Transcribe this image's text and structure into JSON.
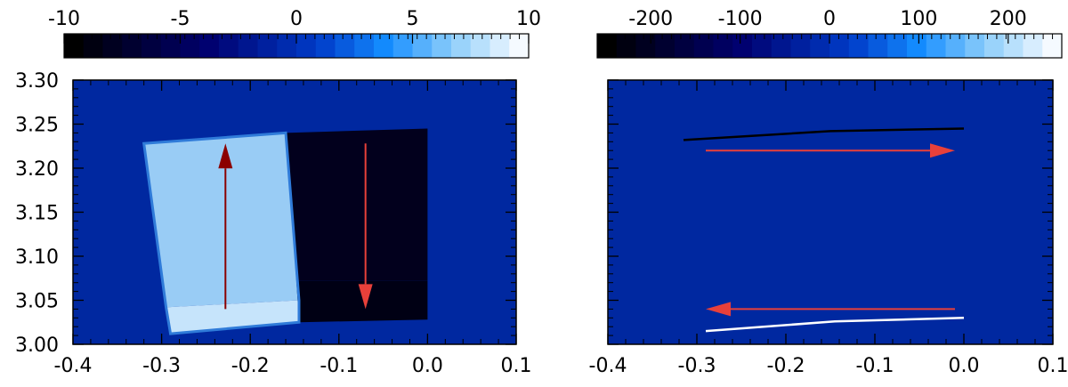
{
  "colors": {
    "background": "#0028a0",
    "frame": "#000000",
    "arrow_dark_red": "#8b0000",
    "arrow_red": "#e8403a",
    "panel_a_light": "#99ccf5",
    "panel_a_lighter": "#c6e4fb",
    "panel_a_edge": "#2f7bd9",
    "panel_a_dark": "#02001d",
    "panel_a_darker": "#000014",
    "panel_b_top_line": "#000000",
    "panel_b_bottom_line": "#ffffff"
  },
  "chart_data": [
    {
      "type": "heatmap",
      "title": "",
      "xlabel": "",
      "ylabel": "",
      "xlim": [
        -0.4,
        0.1
      ],
      "ylim": [
        3.0,
        3.3
      ],
      "xticks": [
        -0.4,
        -0.3,
        -0.2,
        -0.1,
        0.0,
        0.1
      ],
      "xtick_labels": [
        "-0.4",
        "-0.3",
        "-0.2",
        "-0.1",
        "0.0",
        "0.1"
      ],
      "yticks": [
        3.0,
        3.05,
        3.1,
        3.15,
        3.2,
        3.25,
        3.3
      ],
      "ytick_labels": [
        "3.00",
        "3.05",
        "3.10",
        "3.15",
        "3.20",
        "3.25",
        "3.30"
      ],
      "colorbar": {
        "range": [
          -10,
          10
        ],
        "ticks": [
          -10,
          -5,
          0,
          5,
          10
        ],
        "tick_labels": [
          "-10",
          "-5",
          "0",
          "5",
          "10"
        ],
        "steps": 24
      },
      "regions": [
        {
          "name": "light-region",
          "polygon": [
            [
              -0.32,
              3.228
            ],
            [
              -0.16,
              3.24
            ],
            [
              -0.145,
              3.05
            ],
            [
              -0.295,
              3.042
            ]
          ],
          "color": "panel_a_light"
        },
        {
          "name": "lighter-strip",
          "polygon": [
            [
              -0.295,
              3.042
            ],
            [
              -0.145,
              3.05
            ],
            [
              -0.145,
              3.025
            ],
            [
              -0.29,
              3.012
            ]
          ],
          "color": "panel_a_lighter"
        },
        {
          "name": "dark-region",
          "polygon": [
            [
              -0.16,
              3.24
            ],
            [
              0.0,
              3.245
            ],
            [
              0.0,
              3.072
            ],
            [
              -0.148,
              3.072
            ]
          ],
          "color": "panel_a_dark"
        },
        {
          "name": "darker-strip",
          "polygon": [
            [
              -0.148,
              3.072
            ],
            [
              0.0,
              3.072
            ],
            [
              0.0,
              3.028
            ],
            [
              -0.145,
              3.025
            ]
          ],
          "color": "panel_a_darker"
        }
      ],
      "arrows": [
        {
          "name": "up-arrow",
          "from": [
            -0.228,
            3.04
          ],
          "to": [
            -0.228,
            3.228
          ],
          "color": "arrow_dark_red"
        },
        {
          "name": "down-arrow",
          "from": [
            -0.07,
            3.228
          ],
          "to": [
            -0.07,
            3.04
          ],
          "color": "arrow_red"
        }
      ]
    },
    {
      "type": "heatmap",
      "title": "",
      "xlabel": "",
      "ylabel": "",
      "xlim": [
        -0.4,
        0.1
      ],
      "ylim": [
        3.0,
        3.3
      ],
      "xticks": [
        -0.4,
        -0.3,
        -0.2,
        -0.1,
        0.0,
        0.1
      ],
      "xtick_labels": [
        "-0.4",
        "-0.3",
        "-0.2",
        "-0.1",
        "0.0",
        "0.1"
      ],
      "colorbar": {
        "range": [
          -260,
          260
        ],
        "ticks": [
          -200,
          -100,
          0,
          100,
          200
        ],
        "tick_labels": [
          "-200",
          "-100",
          "0",
          "100",
          "200"
        ],
        "steps": 24
      },
      "lines": [
        {
          "name": "top-line",
          "points": [
            [
              -0.315,
              3.232
            ],
            [
              -0.15,
              3.242
            ],
            [
              0.0,
              3.245
            ]
          ],
          "color": "panel_b_top_line"
        },
        {
          "name": "bottom-line",
          "points": [
            [
              -0.29,
              3.015
            ],
            [
              -0.145,
              3.026
            ],
            [
              0.0,
              3.03
            ]
          ],
          "color": "panel_b_bottom_line"
        }
      ],
      "arrows": [
        {
          "name": "right-arrow",
          "from": [
            -0.29,
            3.22
          ],
          "to": [
            -0.01,
            3.22
          ],
          "color": "arrow_red"
        },
        {
          "name": "left-arrow",
          "from": [
            -0.01,
            3.04
          ],
          "to": [
            -0.29,
            3.04
          ],
          "color": "arrow_red"
        }
      ]
    }
  ]
}
